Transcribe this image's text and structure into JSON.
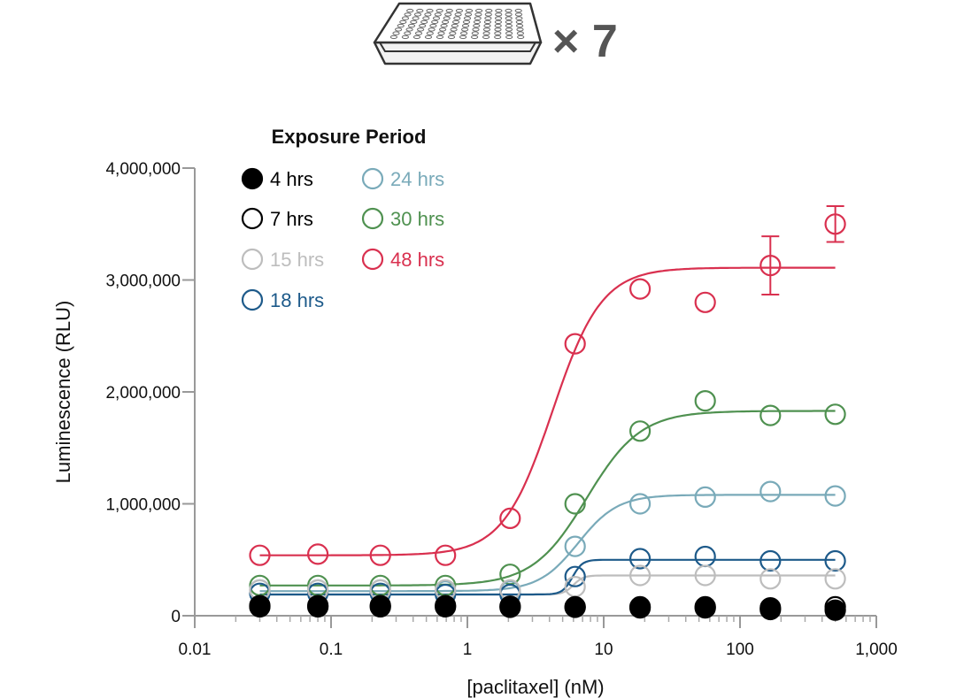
{
  "header": {
    "plate_count_label": "× 7",
    "plate_icon": "microplate-icon"
  },
  "chart_data": {
    "type": "scatter",
    "xlabel": "[paclitaxel] (nM)",
    "ylabel": "Luminescence (RLU)",
    "x_scale": "log",
    "xlim": [
      0.01,
      1000
    ],
    "ylim": [
      0,
      4000000
    ],
    "x_ticks": [
      0.01,
      0.1,
      1,
      10,
      100,
      1000
    ],
    "x_tick_labels": [
      "0.01",
      "0.1",
      "1",
      "10",
      "100",
      "1,000"
    ],
    "y_ticks": [
      0,
      1000000,
      2000000,
      3000000,
      4000000
    ],
    "y_tick_labels": [
      "0",
      "1,000,000",
      "2,000,000",
      "3,000,000",
      "4,000,000"
    ],
    "grid": false,
    "legend_title": "Exposure Period",
    "legend_position": "top-left",
    "x": [
      0.03,
      0.08,
      0.23,
      0.69,
      2.06,
      6.17,
      18.5,
      55.6,
      167,
      500
    ],
    "series": [
      {
        "name": "4 hrs",
        "color": "#000000",
        "filled": true,
        "values": [
          80000,
          80000,
          80000,
          80000,
          75000,
          75000,
          70000,
          70000,
          55000,
          50000
        ]
      },
      {
        "name": "7 hrs",
        "color": "#000000",
        "filled": false,
        "values": [
          90000,
          90000,
          90000,
          90000,
          85000,
          80000,
          80000,
          80000,
          70000,
          80000
        ]
      },
      {
        "name": "15 hrs",
        "color": "#bdbdbd",
        "filled": false,
        "values": [
          230000,
          230000,
          230000,
          230000,
          230000,
          260000,
          360000,
          360000,
          330000,
          330000
        ],
        "fit": {
          "bottom": 190000,
          "top": 360000,
          "ec50": 6,
          "hill": 12
        }
      },
      {
        "name": "18 hrs",
        "color": "#1d5a8a",
        "filled": false,
        "values": [
          200000,
          200000,
          200000,
          190000,
          190000,
          350000,
          510000,
          530000,
          490000,
          490000
        ],
        "fit": {
          "bottom": 190000,
          "top": 500000,
          "ec50": 5.9,
          "hill": 12
        }
      },
      {
        "name": "24 hrs",
        "color": "#79aab9",
        "filled": false,
        "values": [
          230000,
          230000,
          230000,
          220000,
          220000,
          620000,
          1000000,
          1060000,
          1110000,
          1070000
        ],
        "fit": {
          "bottom": 220000,
          "top": 1080000,
          "ec50": 6.5,
          "hill": 3
        }
      },
      {
        "name": "30 hrs",
        "color": "#4f9150",
        "filled": false,
        "values": [
          270000,
          270000,
          270000,
          270000,
          370000,
          1000000,
          1650000,
          1920000,
          1790000,
          1800000
        ],
        "fit": {
          "bottom": 270000,
          "top": 1830000,
          "ec50": 7.5,
          "hill": 2.2
        }
      },
      {
        "name": "48 hrs",
        "color": "#d9304f",
        "filled": false,
        "values": [
          540000,
          550000,
          540000,
          540000,
          870000,
          2430000,
          2920000,
          2800000,
          3130000,
          3500000
        ],
        "error": [
          0,
          0,
          0,
          0,
          0,
          0,
          0,
          0,
          260000,
          160000
        ],
        "fit": {
          "bottom": 540000,
          "top": 3110000,
          "ec50": 4.2,
          "hill": 2.4
        }
      }
    ]
  }
}
